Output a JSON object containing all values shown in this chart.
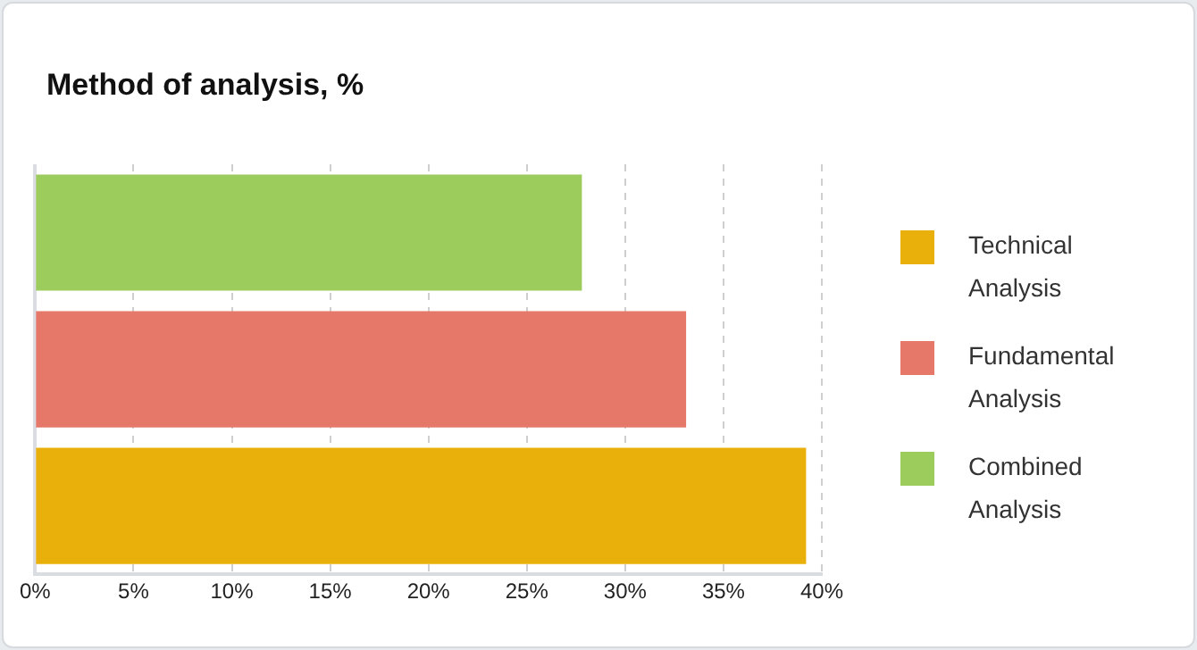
{
  "chart_data": {
    "type": "bar",
    "orientation": "horizontal",
    "title": "Method of analysis, %",
    "categories": [
      null
    ],
    "series": [
      {
        "name": "Combined Analysis",
        "color": "#9ccc5c",
        "values": [
          27.8
        ]
      },
      {
        "name": "Fundamental Analysis",
        "color": "#e57868",
        "values": [
          33.1
        ]
      },
      {
        "name": "Technical Analysis",
        "color": "#e9b00c",
        "values": [
          39.2
        ]
      }
    ],
    "xlim": [
      0,
      40
    ],
    "xticks": [
      {
        "value": 0,
        "label": "0%"
      },
      {
        "value": 5,
        "label": "5%"
      },
      {
        "value": 10,
        "label": "10%"
      },
      {
        "value": 15,
        "label": "15%"
      },
      {
        "value": 20,
        "label": "20%"
      },
      {
        "value": 25,
        "label": "25%"
      },
      {
        "value": 30,
        "label": "30%"
      },
      {
        "value": 35,
        "label": "35%"
      },
      {
        "value": 40,
        "label": "40%"
      }
    ],
    "grid": "x",
    "legend": "right",
    "tick_labels": "x"
  }
}
